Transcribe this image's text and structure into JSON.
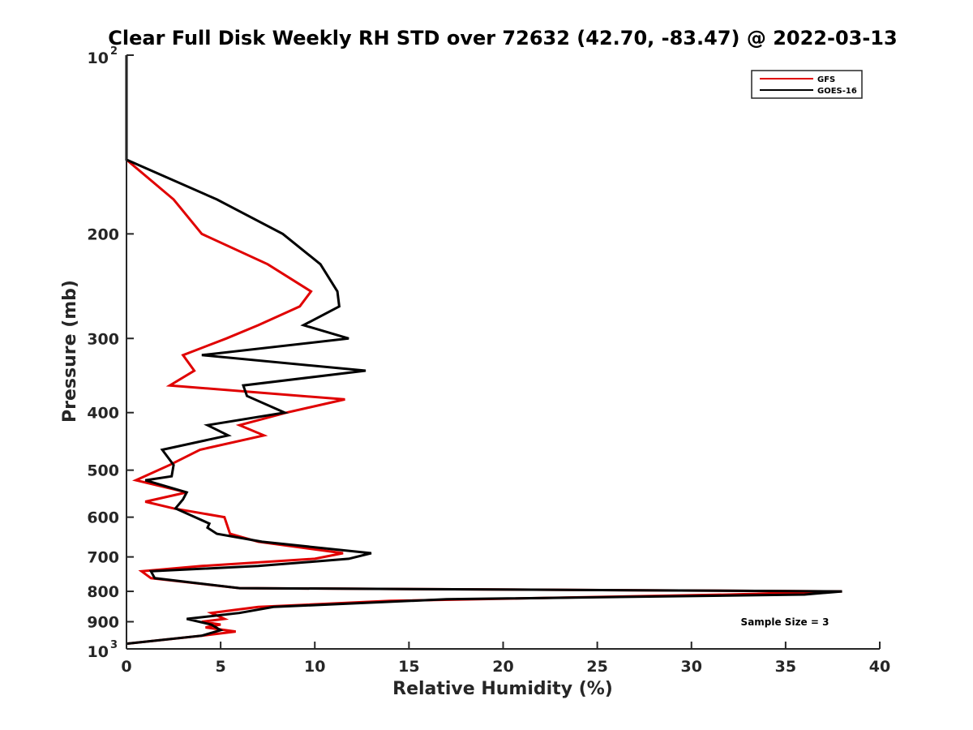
{
  "chart_data": {
    "type": "line",
    "title": "Clear Full Disk Weekly RH STD over 72632 (42.70, -83.47) @ 2022-03-13",
    "xlabel": "Relative Humidity (%)",
    "ylabel": "Pressure (mb)",
    "xlim": [
      0,
      40
    ],
    "ylim": [
      100,
      1000
    ],
    "yscale": "log",
    "y_reversed": true,
    "x_ticks": [
      "0",
      "5",
      "10",
      "15",
      "20",
      "25",
      "30",
      "35",
      "40"
    ],
    "y_tick_values": [
      200,
      300,
      400,
      500,
      600,
      700,
      800,
      900
    ],
    "y_tick_labels": [
      "200",
      "300",
      "400",
      "500",
      "600",
      "700",
      "800",
      "900"
    ],
    "y_end_labels": {
      "top_base": "10",
      "top_exp": "2",
      "bottom_base": "10",
      "bottom_exp": "3"
    },
    "grid": false,
    "legend_position": "top-right",
    "annotation": "Sample Size = 3",
    "series": [
      {
        "name": "GFS",
        "color": "#e00000",
        "points": [
          [
            0,
            100
          ],
          [
            0,
            150
          ],
          [
            2.5,
            175
          ],
          [
            4,
            200
          ],
          [
            7.5,
            225
          ],
          [
            9.8,
            250
          ],
          [
            9.2,
            265
          ],
          [
            7,
            285
          ],
          [
            5.3,
            300
          ],
          [
            3,
            320
          ],
          [
            3.6,
            340
          ],
          [
            2.3,
            360
          ],
          [
            11.6,
            380
          ],
          [
            8.5,
            400
          ],
          [
            6,
            420
          ],
          [
            7.3,
            437
          ],
          [
            3.9,
            462
          ],
          [
            2.3,
            490
          ],
          [
            0.5,
            520
          ],
          [
            3.2,
            545
          ],
          [
            1,
            565
          ],
          [
            2.5,
            580
          ],
          [
            5.2,
            600
          ],
          [
            5.5,
            640
          ],
          [
            7,
            660
          ],
          [
            11.5,
            690
          ],
          [
            10,
            705
          ],
          [
            4,
            725
          ],
          [
            0.8,
            740
          ],
          [
            1.3,
            760
          ],
          [
            6,
            790
          ],
          [
            38,
            800
          ],
          [
            32,
            810
          ],
          [
            14,
            830
          ],
          [
            7,
            850
          ],
          [
            4.5,
            870
          ],
          [
            5.2,
            890
          ],
          [
            4,
            900
          ],
          [
            5,
            910
          ],
          [
            4.2,
            920
          ],
          [
            5.8,
            935
          ],
          [
            4,
            950
          ],
          [
            0,
            980
          ]
        ]
      },
      {
        "name": "GOES-16",
        "color": "#000000",
        "points": [
          [
            0,
            100
          ],
          [
            0,
            150
          ],
          [
            4.8,
            175
          ],
          [
            8.3,
            200
          ],
          [
            10.3,
            225
          ],
          [
            11.2,
            250
          ],
          [
            11.3,
            265
          ],
          [
            9.4,
            285
          ],
          [
            11.8,
            300
          ],
          [
            4,
            320
          ],
          [
            12.7,
            340
          ],
          [
            6.2,
            360
          ],
          [
            6.4,
            375
          ],
          [
            8.4,
            400
          ],
          [
            4.3,
            420
          ],
          [
            5.4,
            437
          ],
          [
            1.9,
            462
          ],
          [
            2.5,
            490
          ],
          [
            2.4,
            512
          ],
          [
            1,
            520
          ],
          [
            3.2,
            545
          ],
          [
            3,
            560
          ],
          [
            2.6,
            580
          ],
          [
            4.4,
            615
          ],
          [
            4.3,
            625
          ],
          [
            4.8,
            640
          ],
          [
            7.2,
            660
          ],
          [
            13,
            690
          ],
          [
            11.8,
            705
          ],
          [
            7,
            725
          ],
          [
            1.3,
            740
          ],
          [
            1.5,
            760
          ],
          [
            6,
            790
          ],
          [
            38,
            800
          ],
          [
            36,
            810
          ],
          [
            17,
            825
          ],
          [
            7.8,
            850
          ],
          [
            6,
            870
          ],
          [
            3.2,
            890
          ],
          [
            4.5,
            910
          ],
          [
            5,
            930
          ],
          [
            4,
            950
          ],
          [
            0,
            980
          ]
        ]
      }
    ]
  }
}
